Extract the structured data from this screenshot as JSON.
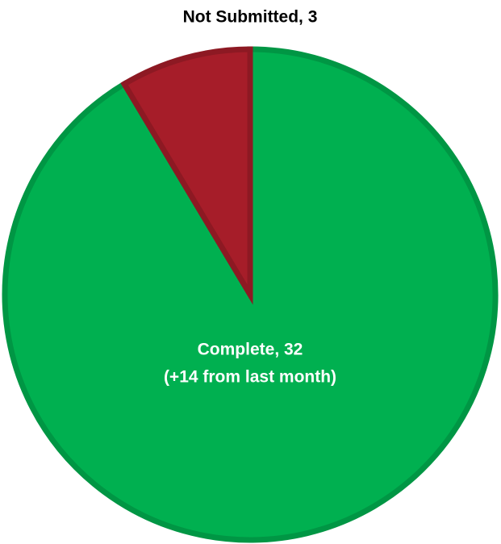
{
  "chart_data": {
    "type": "pie",
    "categories": [
      "Complete",
      "Not Submitted"
    ],
    "values": [
      32,
      3
    ],
    "value_labels": [
      "Complete, 32",
      "Not Submitted, 3"
    ],
    "colors": [
      "#00b050",
      "#a61d29"
    ],
    "annotation": "(+14 from last month)"
  }
}
